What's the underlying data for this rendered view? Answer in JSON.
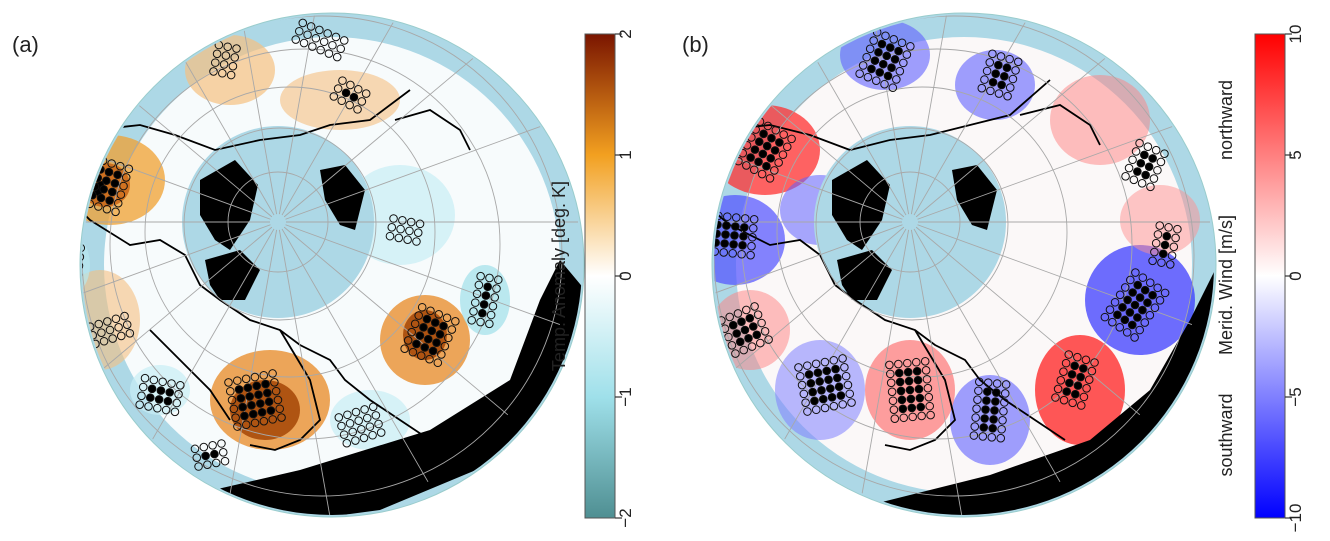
{
  "panels": [
    {
      "label": "(a)",
      "colorbar": {
        "title": "Temp. Anomaly [deg. K]",
        "ticks": [
          "2",
          "1",
          "0",
          "−1",
          "−2"
        ],
        "tick_values": [
          2,
          1,
          0,
          -1,
          -2
        ],
        "range": [
          -2,
          2
        ],
        "colors": [
          "#4f8f92",
          "#9fe0ea",
          "#ffffff",
          "#f2a020",
          "#7a1500"
        ]
      }
    },
    {
      "label": "(b)",
      "colorbar": {
        "title": "Merid. Wind [m/s]",
        "end_labels": [
          "northward",
          "southward"
        ],
        "ticks": [
          "10",
          "5",
          "0",
          "−5",
          "−10"
        ],
        "tick_values": [
          10,
          5,
          0,
          -5,
          -10
        ],
        "range": [
          -10,
          10
        ],
        "colors": [
          "#0000ff",
          "#ffffff",
          "#ff0000"
        ]
      }
    }
  ],
  "map": {
    "projection": "polar-stereographic",
    "ocean_color": "#add8e6",
    "land_color": "#000000",
    "grid_color": "#a8a8a8"
  }
}
